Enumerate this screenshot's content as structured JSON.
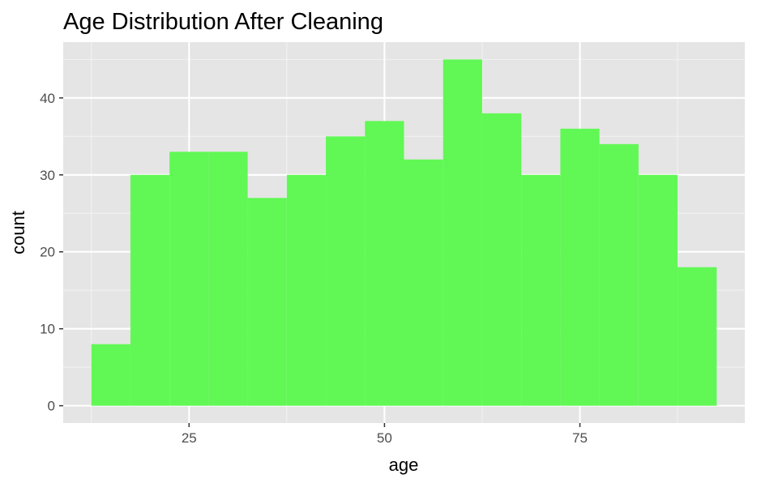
{
  "chart_data": {
    "type": "bar",
    "title": "Age Distribution After Cleaning",
    "xlabel": "age",
    "ylabel": "count",
    "bin_width": 5,
    "bin_centers": [
      15,
      20,
      25,
      30,
      35,
      40,
      45,
      50,
      55,
      60,
      65,
      70,
      75,
      80,
      85,
      90
    ],
    "values": [
      8,
      30,
      33,
      33,
      27,
      30,
      35,
      37,
      32,
      45,
      38,
      30,
      36,
      34,
      30,
      18
    ],
    "xlim": [
      8.9,
      96.1
    ],
    "ylim": [
      -2.25,
      47.25
    ],
    "x_ticks": [
      25,
      50,
      75
    ],
    "y_ticks": [
      0,
      10,
      20,
      30,
      40
    ],
    "grid": true,
    "colors": {
      "bar_fill": "#5CF84F",
      "panel_bg": "#E5E5E5",
      "grid_major": "#FFFFFF",
      "grid_minor": "#F2F2F2",
      "tick_mark": "#333333"
    }
  }
}
